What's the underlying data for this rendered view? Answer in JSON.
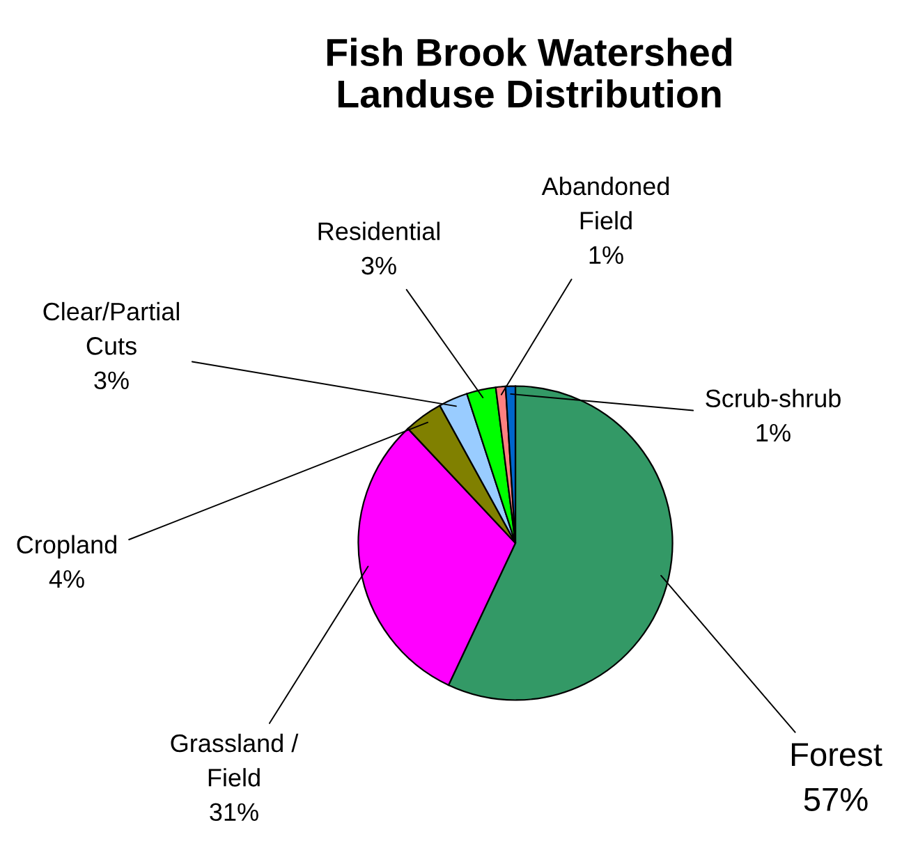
{
  "chart_data": {
    "type": "pie",
    "title": "Fish Brook Watershed\nLanduse Distribution",
    "categories": [
      "Forest",
      "Grassland /\nField",
      "Cropland",
      "Clear/Partial\nCuts",
      "Residential",
      "Abandoned\nField",
      "Scrub-shrub"
    ],
    "values": [
      57,
      31,
      4,
      3,
      3,
      1,
      1
    ],
    "colors": [
      "#339966",
      "#ff00ff",
      "#808000",
      "#99ccff",
      "#00ff00",
      "#ff8080",
      "#0066cc"
    ],
    "value_labels": [
      "57%",
      "31%",
      "4%",
      "3%",
      "3%",
      "1%",
      "1%"
    ],
    "legend": false
  }
}
